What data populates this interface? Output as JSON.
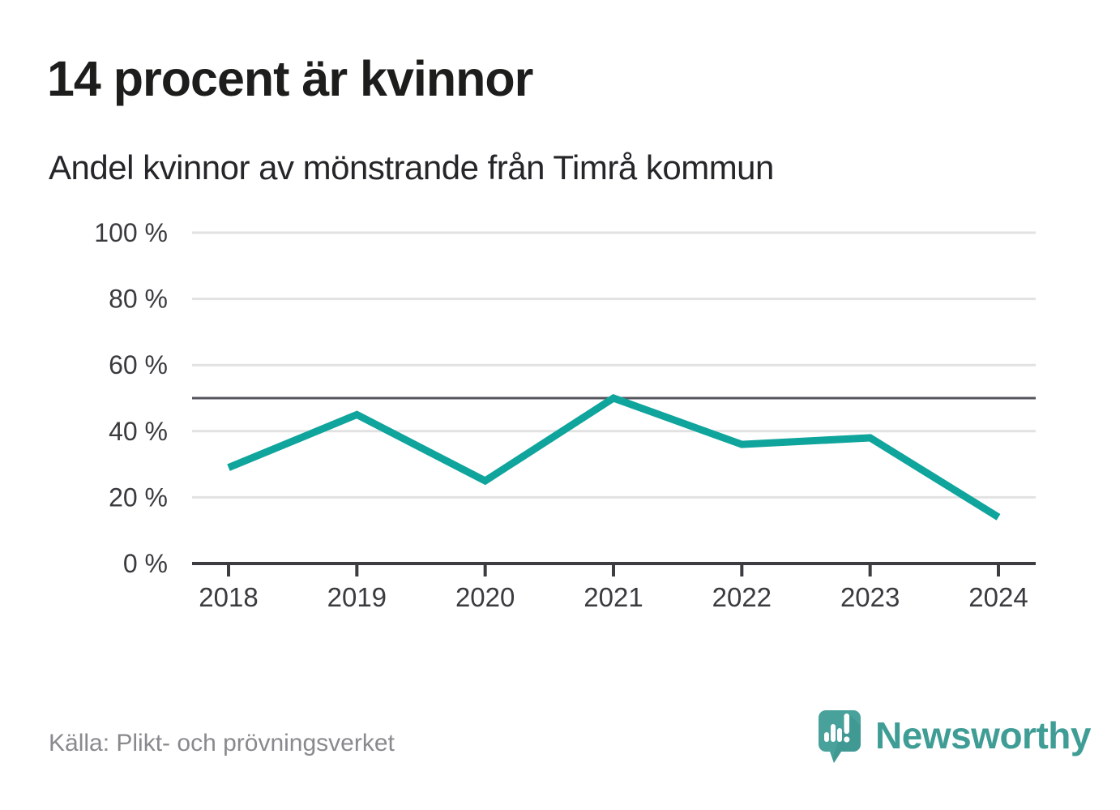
{
  "header": {
    "title": "14 procent är kvinnor",
    "subtitle": "Andel kvinnor av mönstrande från Timrå kommun"
  },
  "chart_data": {
    "type": "line",
    "title": "14 procent är kvinnor",
    "subtitle": "Andel kvinnor av mönstrande från Timrå kommun",
    "x": [
      2018,
      2019,
      2020,
      2021,
      2022,
      2023,
      2024
    ],
    "series": [
      {
        "name": "Andel kvinnor av mönstrande",
        "values": [
          29,
          45,
          25,
          50,
          36,
          38,
          14
        ]
      }
    ],
    "ylim": [
      0,
      100
    ],
    "yticks": [
      0,
      20,
      40,
      60,
      80,
      100
    ],
    "ytick_suffix": " %",
    "reference_line": 50,
    "grid": true,
    "legend": "none"
  },
  "footer": {
    "source": "Källa: Plikt- och prövningsverket",
    "brand": "Newsworthy"
  },
  "colors": {
    "line": "#0fa49c",
    "grid": "#e2e2e2",
    "reference": "#55545c",
    "axis": "#3d3c41",
    "tick_label": "#3a3a3f",
    "logo": "#48a19b",
    "logo_shadow": "#3c938d",
    "brand_text": "#3f9d96"
  }
}
